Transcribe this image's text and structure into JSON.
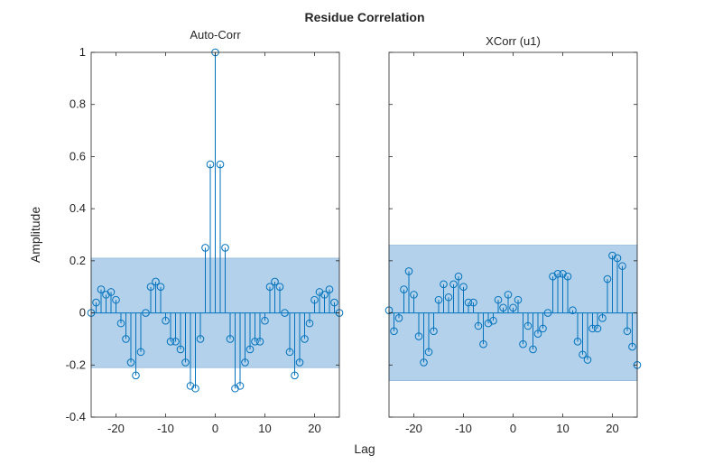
{
  "figure": {
    "title": "Residue Correlation",
    "xlabel": "Lag",
    "ylabel": "Amplitude"
  },
  "colors": {
    "stem": "#0072BD",
    "confidence_fill": "#B3D1EA",
    "axes": "#262626"
  },
  "chart_data": [
    {
      "type": "stem",
      "title": "Auto-Corr",
      "xlim": [
        -25,
        25
      ],
      "ylim": [
        -0.4,
        1
      ],
      "xticks": [
        -20,
        -10,
        0,
        10,
        20
      ],
      "yticks": [
        -0.4,
        -0.2,
        0,
        0.2,
        0.4,
        0.6,
        0.8,
        1
      ],
      "ytick_labels": [
        "-0.4",
        "-0.2",
        "0",
        "0.2",
        "0.4",
        "0.6",
        "0.8",
        "1"
      ],
      "confidence_band": [
        -0.21,
        0.21
      ],
      "x": [
        -25,
        -24,
        -23,
        -22,
        -21,
        -20,
        -19,
        -18,
        -17,
        -16,
        -15,
        -14,
        -13,
        -12,
        -11,
        -10,
        -9,
        -8,
        -7,
        -6,
        -5,
        -4,
        -3,
        -2,
        -1,
        0,
        1,
        2,
        3,
        4,
        5,
        6,
        7,
        8,
        9,
        10,
        11,
        12,
        13,
        14,
        15,
        16,
        17,
        18,
        19,
        20,
        21,
        22,
        23,
        24,
        25
      ],
      "values": [
        0.0,
        0.04,
        0.09,
        0.07,
        0.08,
        0.05,
        -0.04,
        -0.1,
        -0.19,
        -0.24,
        -0.15,
        0.0,
        0.1,
        0.12,
        0.1,
        -0.03,
        -0.11,
        -0.11,
        -0.14,
        -0.19,
        -0.28,
        -0.29,
        -0.1,
        0.25,
        0.57,
        1.0,
        0.57,
        0.25,
        -0.1,
        -0.29,
        -0.28,
        -0.19,
        -0.14,
        -0.11,
        -0.11,
        -0.03,
        0.1,
        0.12,
        0.1,
        0.0,
        -0.15,
        -0.24,
        -0.19,
        -0.1,
        -0.04,
        0.05,
        0.08,
        0.07,
        0.09,
        0.04,
        0.0
      ]
    },
    {
      "type": "stem",
      "title": "XCorr (u1)",
      "xlim": [
        -25,
        25
      ],
      "ylim": [
        -0.4,
        1
      ],
      "xticks": [
        -20,
        -10,
        0,
        10,
        20
      ],
      "yticks": [
        -0.4,
        -0.2,
        0,
        0.2,
        0.4,
        0.6,
        0.8,
        1
      ],
      "ytick_labels": [],
      "confidence_band": [
        -0.26,
        0.26
      ],
      "x": [
        -25,
        -24,
        -23,
        -22,
        -21,
        -20,
        -19,
        -18,
        -17,
        -16,
        -15,
        -14,
        -13,
        -12,
        -11,
        -10,
        -9,
        -8,
        -7,
        -6,
        -5,
        -4,
        -3,
        -2,
        -1,
        0,
        1,
        2,
        3,
        4,
        5,
        6,
        7,
        8,
        9,
        10,
        11,
        12,
        13,
        14,
        15,
        16,
        17,
        18,
        19,
        20,
        21,
        22,
        23,
        24,
        25
      ],
      "values": [
        0.01,
        -0.07,
        -0.02,
        0.09,
        0.16,
        0.07,
        -0.09,
        -0.19,
        -0.15,
        -0.07,
        0.05,
        0.11,
        0.06,
        0.11,
        0.14,
        0.1,
        0.04,
        0.04,
        -0.05,
        -0.12,
        -0.04,
        -0.03,
        0.05,
        0.02,
        0.07,
        0.02,
        0.05,
        -0.12,
        -0.05,
        -0.14,
        -0.08,
        -0.06,
        0.0,
        0.14,
        0.15,
        0.15,
        0.14,
        0.01,
        -0.11,
        -0.16,
        -0.18,
        -0.06,
        -0.06,
        -0.02,
        0.13,
        0.22,
        0.21,
        0.18,
        -0.07,
        -0.13,
        -0.2
      ]
    }
  ]
}
